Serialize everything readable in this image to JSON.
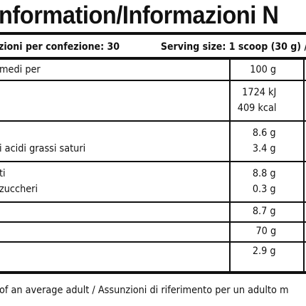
{
  "header": {
    "title": "nformation/Informazioni N",
    "servings": "zioni per confezione: 30",
    "serving_size": "Serving size: 1 scoop (30 g) /"
  },
  "table": {
    "rows": [
      {
        "lines": [
          {
            "label": "medi per",
            "value": "100 g"
          }
        ]
      },
      {
        "lines": [
          {
            "value": "1724 kJ"
          },
          {
            "value": "409 kcal"
          }
        ]
      },
      {
        "lines": [
          {
            "value": "8.6 g"
          },
          {
            "label": "i acidi grassi saturi",
            "value": "3.4 g"
          }
        ]
      },
      {
        "lines": [
          {
            "label": "ti",
            "value": "8.8 g"
          },
          {
            "label": "zuccheri",
            "value": "0.3 g"
          }
        ]
      },
      {
        "lines": [
          {
            "value": "8.7 g"
          }
        ]
      },
      {
        "lines": [
          {
            "value": "70 g"
          }
        ]
      },
      {
        "lines": [
          {
            "value": "2.9 g"
          }
        ]
      }
    ]
  },
  "footer": "of an average adult / Assunzioni di riferimento per un adulto m"
}
